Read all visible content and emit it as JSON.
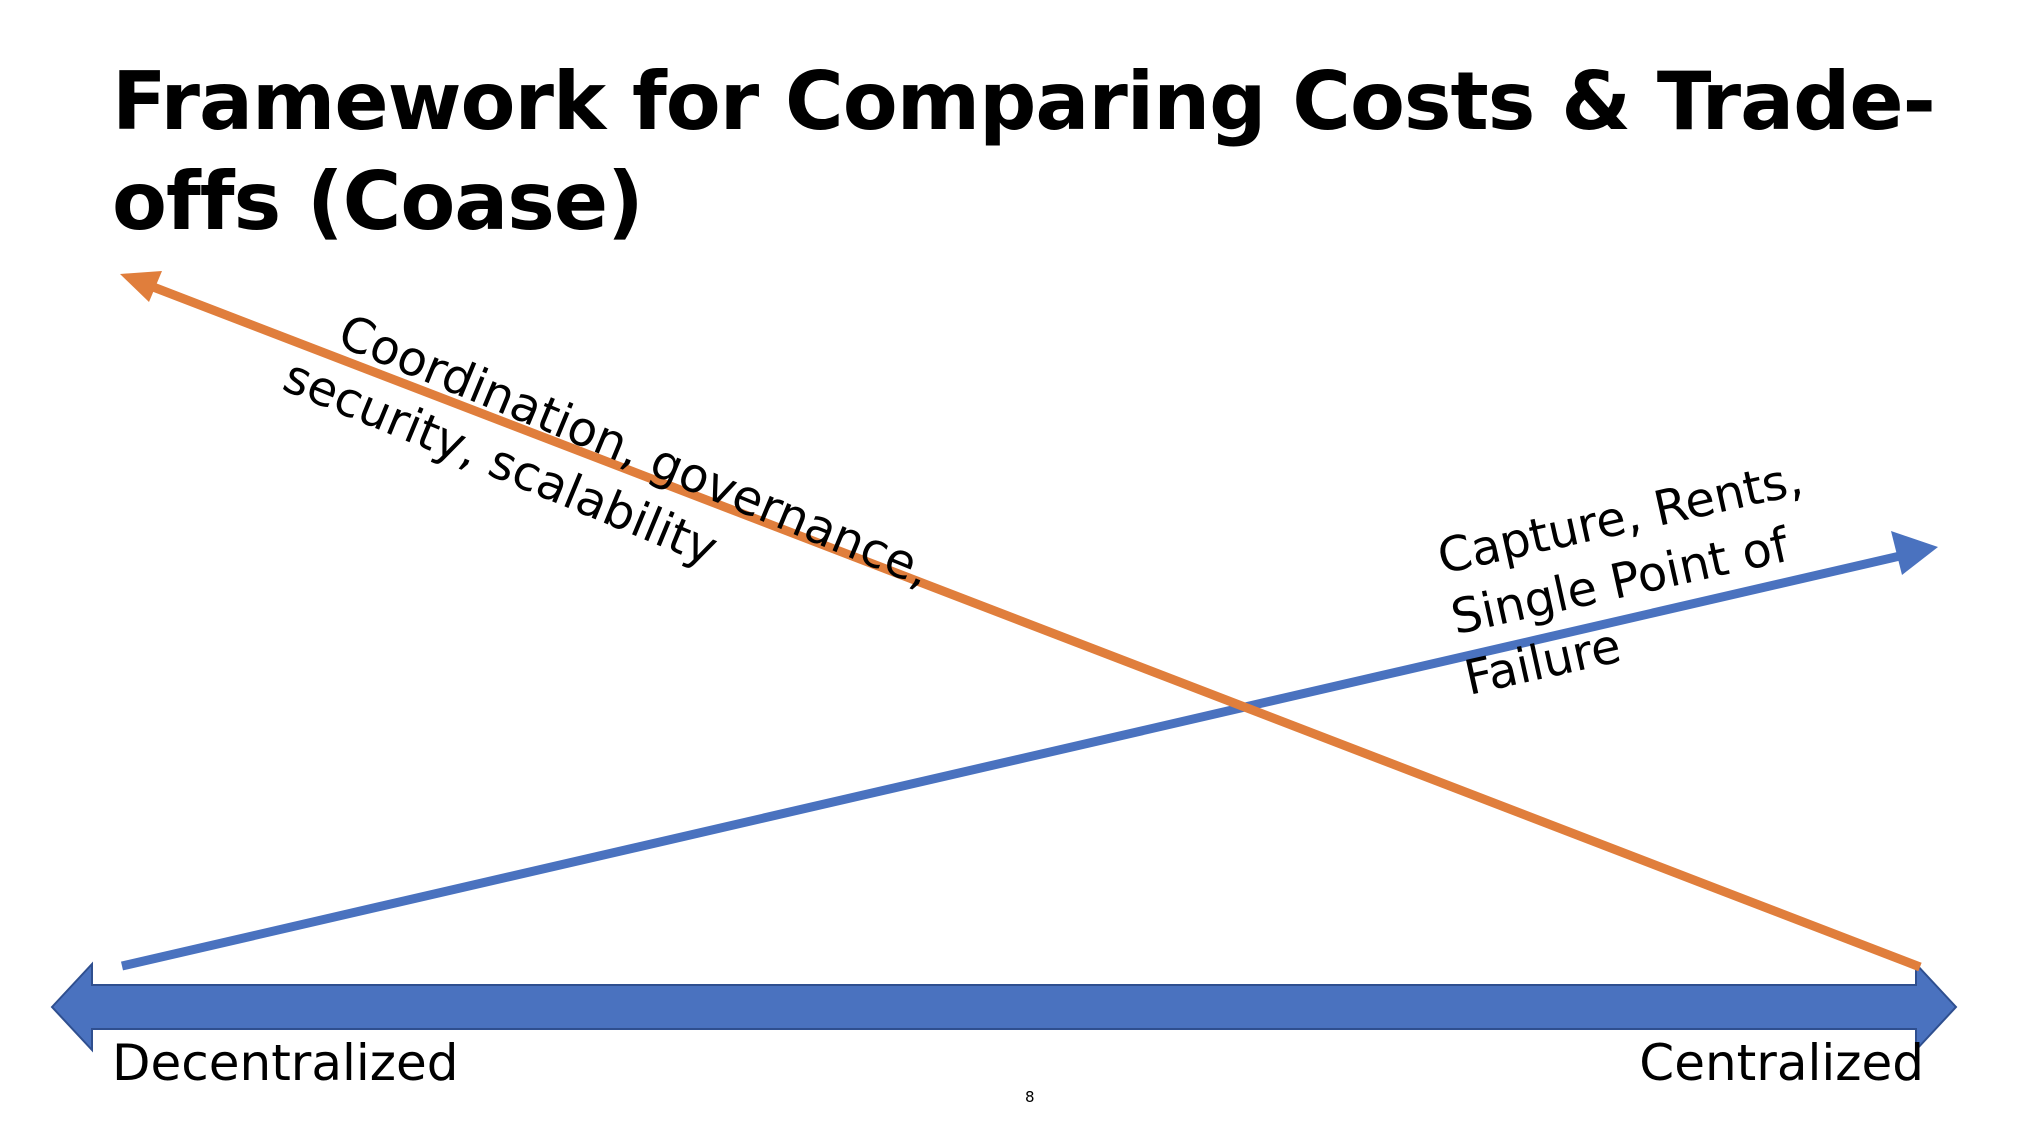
{
  "slide": {
    "title": "Framework for Comparing Costs & Trade-offs (Coase)",
    "axis": {
      "left_label": "Decentralized",
      "right_label": "Centralized"
    },
    "orange_arrow": {
      "label_line_1": "Coordination, governance,",
      "label_line_2": "security, scalability"
    },
    "blue_arrow": {
      "label_line_1": "Capture, Rents,",
      "label_line_2": "Single Point of",
      "label_line_3": "Failure"
    },
    "page_number": "8"
  },
  "colors": {
    "orange": "#E07E3C",
    "blue": "#4A72BF",
    "axis_fill": "#4A72BF",
    "axis_stroke": "#2F4F8F"
  }
}
